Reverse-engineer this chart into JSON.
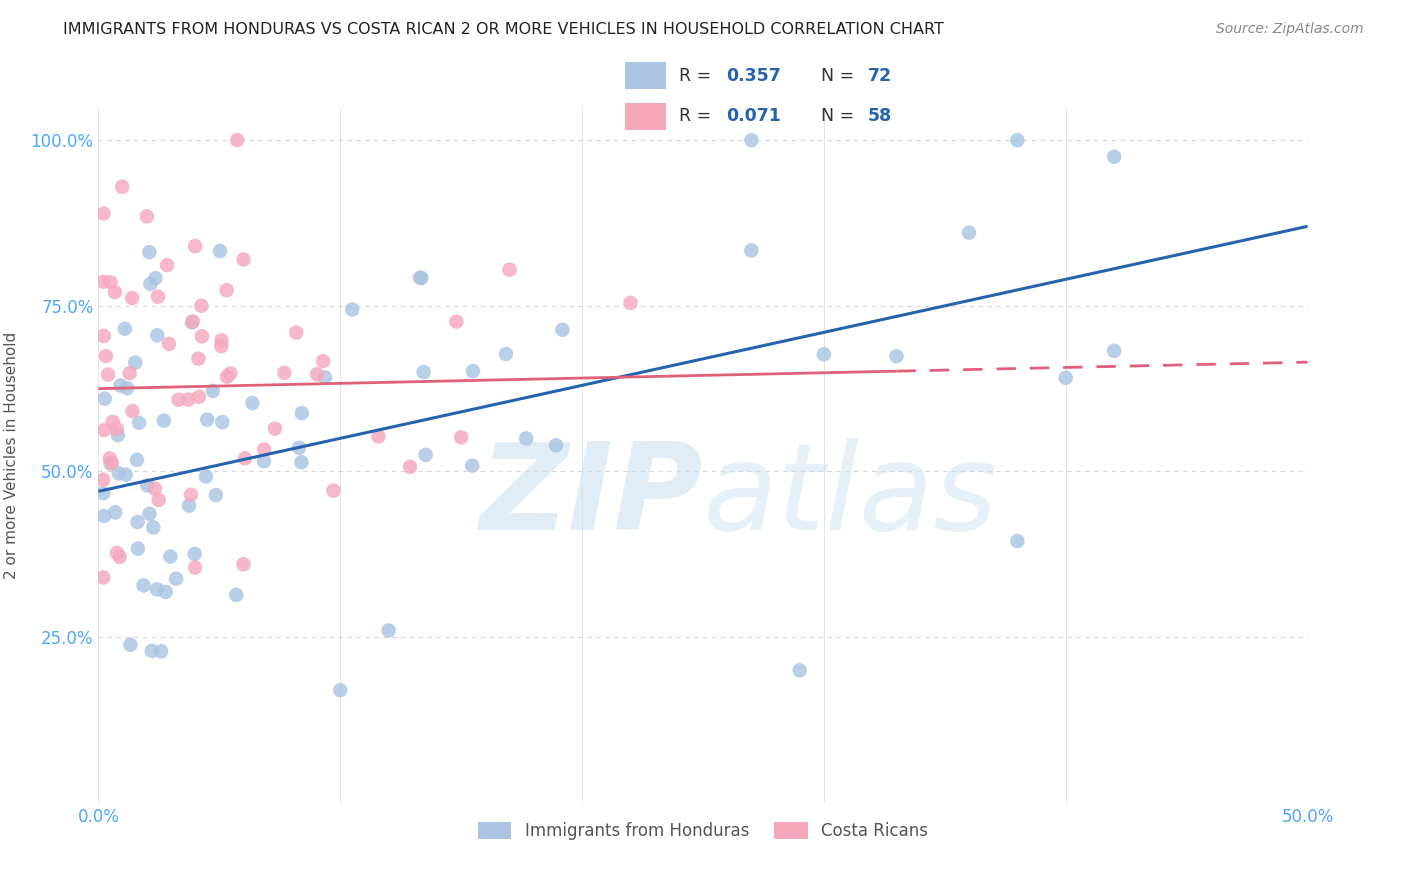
{
  "title": "IMMIGRANTS FROM HONDURAS VS COSTA RICAN 2 OR MORE VEHICLES IN HOUSEHOLD CORRELATION CHART",
  "source": "Source: ZipAtlas.com",
  "ylabel": "2 or more Vehicles in Household",
  "xlim": [
    0.0,
    0.5
  ],
  "ylim": [
    0.0,
    1.05
  ],
  "xticks": [
    0.0,
    0.1,
    0.2,
    0.3,
    0.4,
    0.5
  ],
  "xticklabels": [
    "0.0%",
    "",
    "",
    "",
    "",
    "50.0%"
  ],
  "yticks": [
    0.0,
    0.25,
    0.5,
    0.75,
    1.0
  ],
  "yticklabels": [
    "",
    "25.0%",
    "50.0%",
    "75.0%",
    "100.0%"
  ],
  "blue_R": 0.357,
  "blue_N": 72,
  "pink_R": 0.071,
  "pink_N": 58,
  "blue_color": "#aac4e2",
  "pink_color": "#f5a8bc",
  "blue_line_color": "#2563ae",
  "pink_line_color": "#e0607a",
  "blue_line_y0": 0.47,
  "blue_line_y1": 0.87,
  "pink_line_y0": 0.625,
  "pink_line_y1": 0.665,
  "background_color": "#ffffff",
  "grid_color": "#cccccc",
  "axis_color": "#4da6ff",
  "title_color": "#222222",
  "source_color": "#888888",
  "ylabel_color": "#555555",
  "legend_label_color": "#333333",
  "watermark_zip_color": "#c8dff0",
  "watermark_atlas_color": "#c8dff0",
  "scatter_size": 110,
  "scatter_alpha": 0.82
}
